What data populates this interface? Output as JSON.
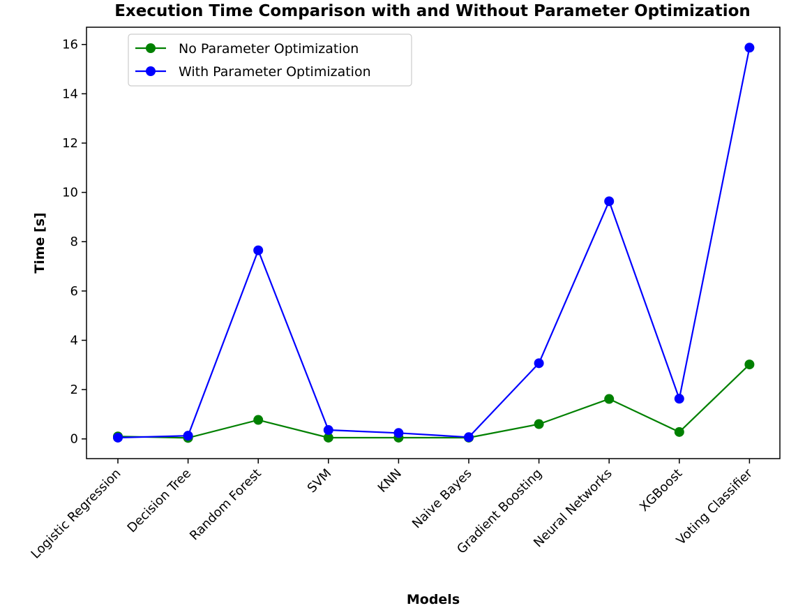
{
  "chart_data": {
    "type": "line",
    "title": "Execution Time Comparison with and Without Parameter Optimization",
    "xlabel": "Models",
    "ylabel": "Time [s]",
    "categories": [
      "Logistic Regression",
      "Decision Tree",
      "Random Forest",
      "SVM",
      "KNN",
      "Naive Bayes",
      "Gradient Boosting",
      "Neural Networks",
      "XGBoost",
      "Voting Classifier"
    ],
    "ylim": [
      -0.8,
      16.7
    ],
    "yticks": [
      0,
      2,
      4,
      6,
      8,
      10,
      12,
      14,
      16
    ],
    "grid": false,
    "legend_position": "upper-left",
    "series": [
      {
        "name": "No Parameter Optimization",
        "color": "#008000",
        "values": [
          0.1,
          0.04,
          0.77,
          0.05,
          0.05,
          0.05,
          0.6,
          1.62,
          0.28,
          3.02
        ]
      },
      {
        "name": "With Parameter Optimization",
        "color": "#0000ff",
        "values": [
          0.05,
          0.13,
          7.65,
          0.36,
          0.24,
          0.07,
          3.07,
          9.64,
          1.63,
          15.87
        ]
      }
    ]
  }
}
